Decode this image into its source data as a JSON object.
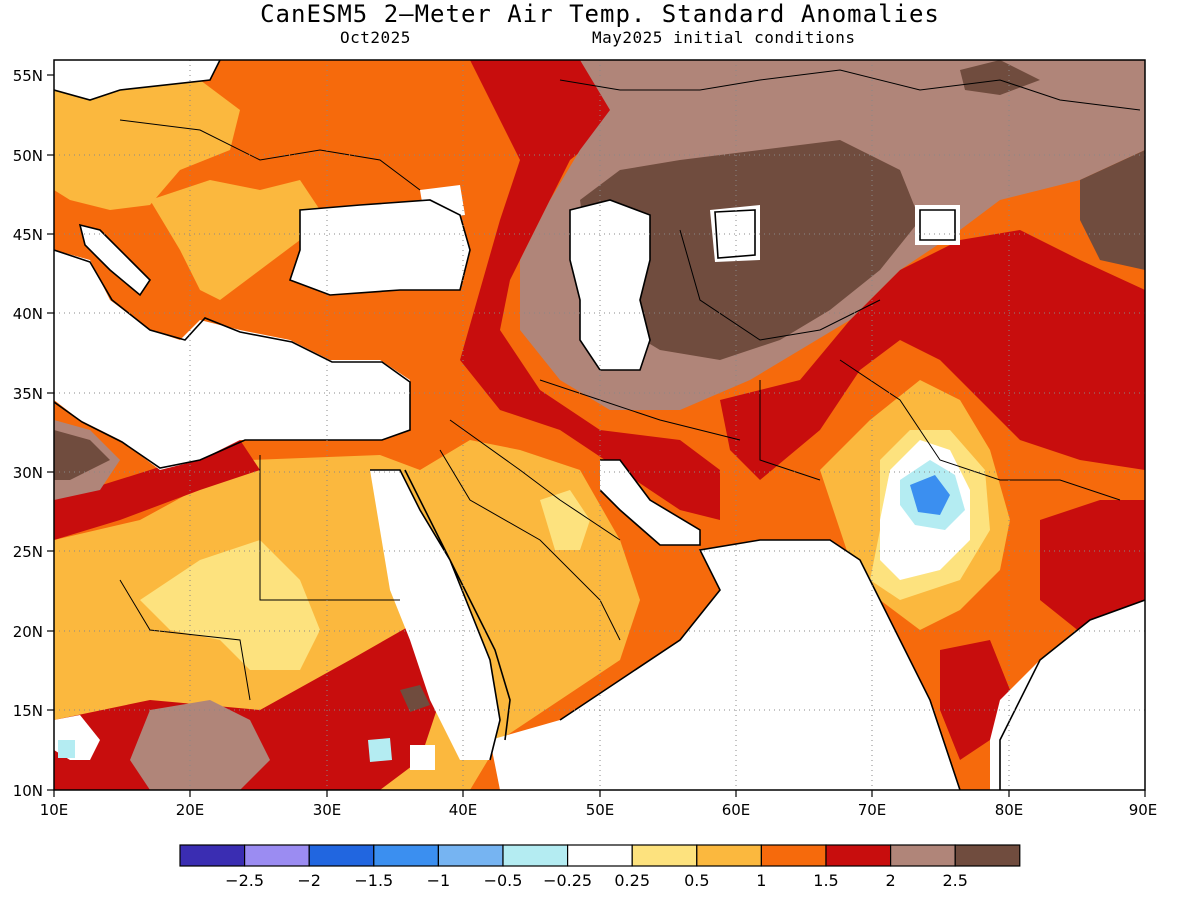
{
  "title": "CanESM5 2—Meter Air Temp. Standard Anomalies",
  "subtitle_left": "Oct2025",
  "subtitle_right": "May2025 initial conditions",
  "map": {
    "lon_range": [
      10,
      90
    ],
    "lat_range": [
      10,
      56
    ],
    "lon_ticks": [
      "10E",
      "20E",
      "30E",
      "40E",
      "50E",
      "60E",
      "70E",
      "80E",
      "90E"
    ],
    "lat_ticks": [
      "55N",
      "50N",
      "45N",
      "40N",
      "35N",
      "30N",
      "25N",
      "20N",
      "15N",
      "10N"
    ]
  },
  "colorbar": {
    "colors": [
      "#3a2db2",
      "#9b8cf2",
      "#2166e0",
      "#3b8ff0",
      "#76b4f2",
      "#b4ecf2",
      "#ffffff",
      "#fde27e",
      "#fbb83e",
      "#f66a0c",
      "#c80d0d",
      "#b08579",
      "#704c3e"
    ],
    "labels": [
      "−2.5",
      "−2",
      "−1.5",
      "−1",
      "−0.5",
      "−0.25",
      "0.25",
      "0.5",
      "1",
      "1.5",
      "2",
      "2.5"
    ]
  }
}
